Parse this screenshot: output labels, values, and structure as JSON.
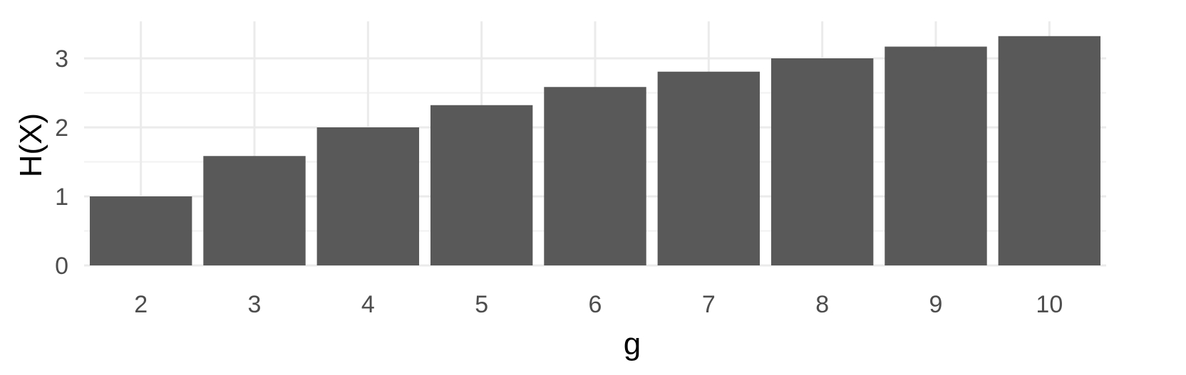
{
  "chart_data": {
    "type": "bar",
    "title": "",
    "xlabel": "g",
    "ylabel": "H(X)",
    "categories": [
      "2",
      "3",
      "4",
      "5",
      "6",
      "7",
      "8",
      "9",
      "10"
    ],
    "values": [
      1.0,
      1.585,
      2.0,
      2.322,
      2.585,
      2.807,
      3.0,
      3.17,
      3.322
    ],
    "ylim": [
      0,
      3.5
    ],
    "yticks": [
      0,
      1,
      2,
      3
    ],
    "grid": true,
    "legend": "none",
    "bar_color": "#595959",
    "grid_color": "#ebebeb"
  }
}
